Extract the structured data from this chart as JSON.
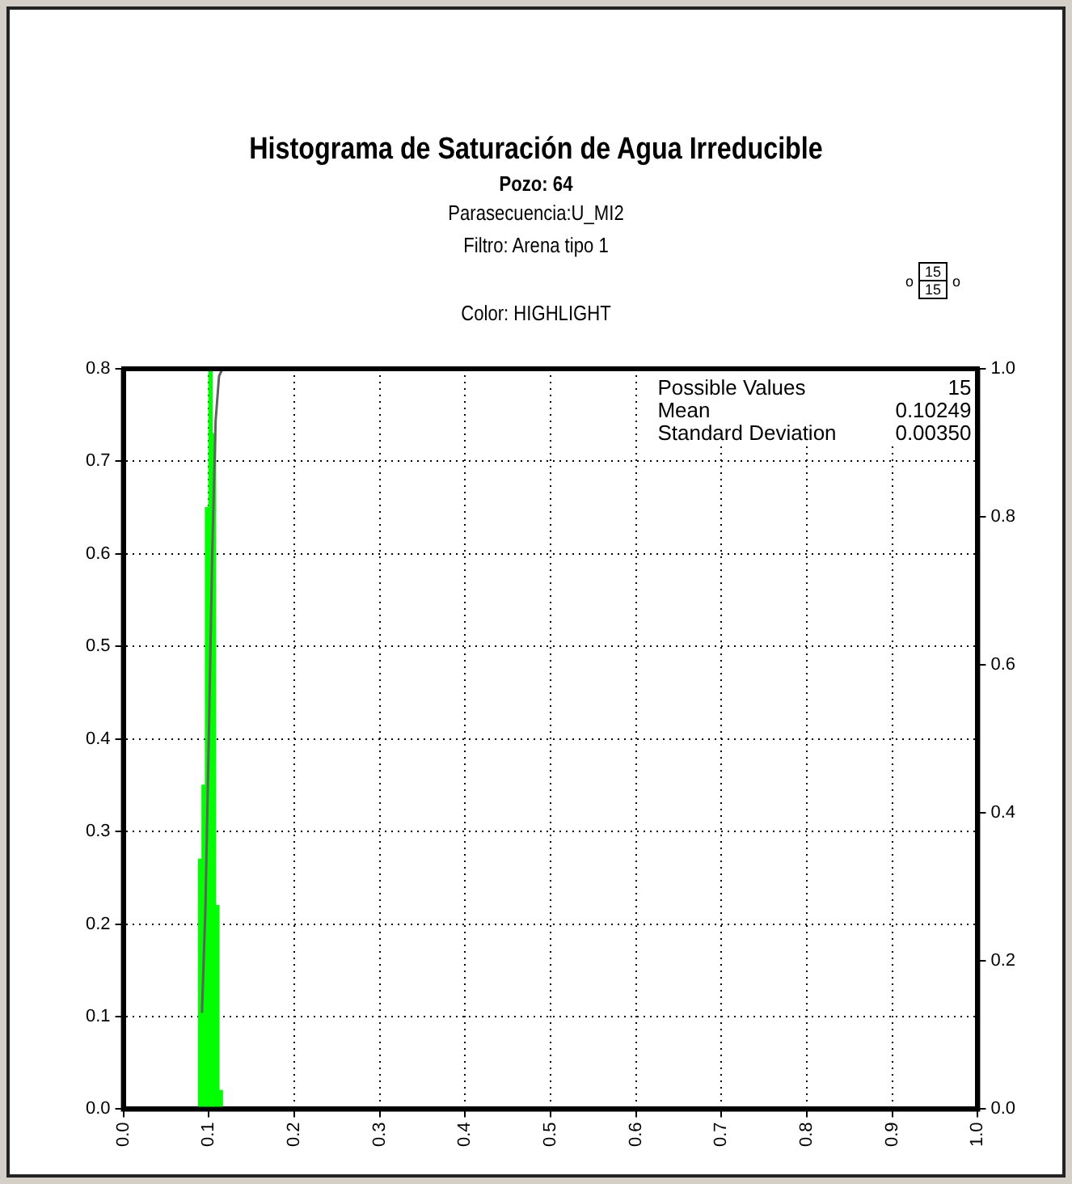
{
  "chart_data": {
    "type": "histogram",
    "title": "Histograma de Saturación de Agua Irreducible",
    "subtitle": "Pozo: 64",
    "annotations": [
      "Parasecuencia:U_MI2",
      "Filtro: Arena tipo 1",
      "Color: HIGHLIGHT",
      "Possible Values",
      "15",
      "Mean",
      "0.10249",
      "Standard Deviation",
      "0.00350",
      "15",
      "15",
      "o",
      "o"
    ],
    "bins": [
      0.088,
      0.092,
      0.096,
      0.1,
      0.104,
      0.108,
      0.112,
      0.116
    ],
    "values": [
      0.27,
      0.35,
      0.65,
      0.8,
      0.73,
      0.22,
      0.02
    ],
    "color": "#00ff00",
    "series": [
      {
        "type": "line",
        "axis": "y2",
        "color": "#606060",
        "x": [
          0.092,
          0.096,
          0.1,
          0.104,
          0.108,
          0.112,
          0.116
        ],
        "values": [
          0.13,
          0.27,
          0.5,
          0.75,
          0.93,
          0.99,
          1.0
        ]
      }
    ],
    "xlim": [
      0,
      1
    ],
    "xticks": [
      {
        "value": 0,
        "label": "0.0"
      },
      {
        "value": 0.1,
        "label": "0.1"
      },
      {
        "value": 0.2,
        "label": "0.2"
      },
      {
        "value": 0.3,
        "label": "0.3"
      },
      {
        "value": 0.4,
        "label": "0.4"
      },
      {
        "value": 0.5,
        "label": "0.5"
      },
      {
        "value": 0.6,
        "label": "0.6"
      },
      {
        "value": 0.7,
        "label": "0.7"
      },
      {
        "value": 0.8,
        "label": "0.8"
      },
      {
        "value": 0.9,
        "label": "0.9"
      },
      {
        "value": 1,
        "label": "1.0"
      }
    ],
    "ylim": [
      0,
      0.8
    ],
    "yticks": [
      {
        "value": 0,
        "label": "0.0"
      },
      {
        "value": 0.1,
        "label": "0.1"
      },
      {
        "value": 0.2,
        "label": "0.2"
      },
      {
        "value": 0.3,
        "label": "0.3"
      },
      {
        "value": 0.4,
        "label": "0.4"
      },
      {
        "value": 0.5,
        "label": "0.5"
      },
      {
        "value": 0.6,
        "label": "0.6"
      },
      {
        "value": 0.7,
        "label": "0.7"
      },
      {
        "value": 0.8,
        "label": "0.8"
      }
    ],
    "y2lim": [
      0,
      1
    ],
    "y2ticks": [
      {
        "value": 0,
        "label": "0.0"
      },
      {
        "value": 0.2,
        "label": "0.2"
      },
      {
        "value": 0.4,
        "label": "0.4"
      },
      {
        "value": 0.6,
        "label": "0.6"
      },
      {
        "value": 0.8,
        "label": "0.8"
      },
      {
        "value": 1,
        "label": "1.0"
      }
    ],
    "grid": true,
    "legend": false,
    "marker": "none",
    "line_style": "solid"
  }
}
